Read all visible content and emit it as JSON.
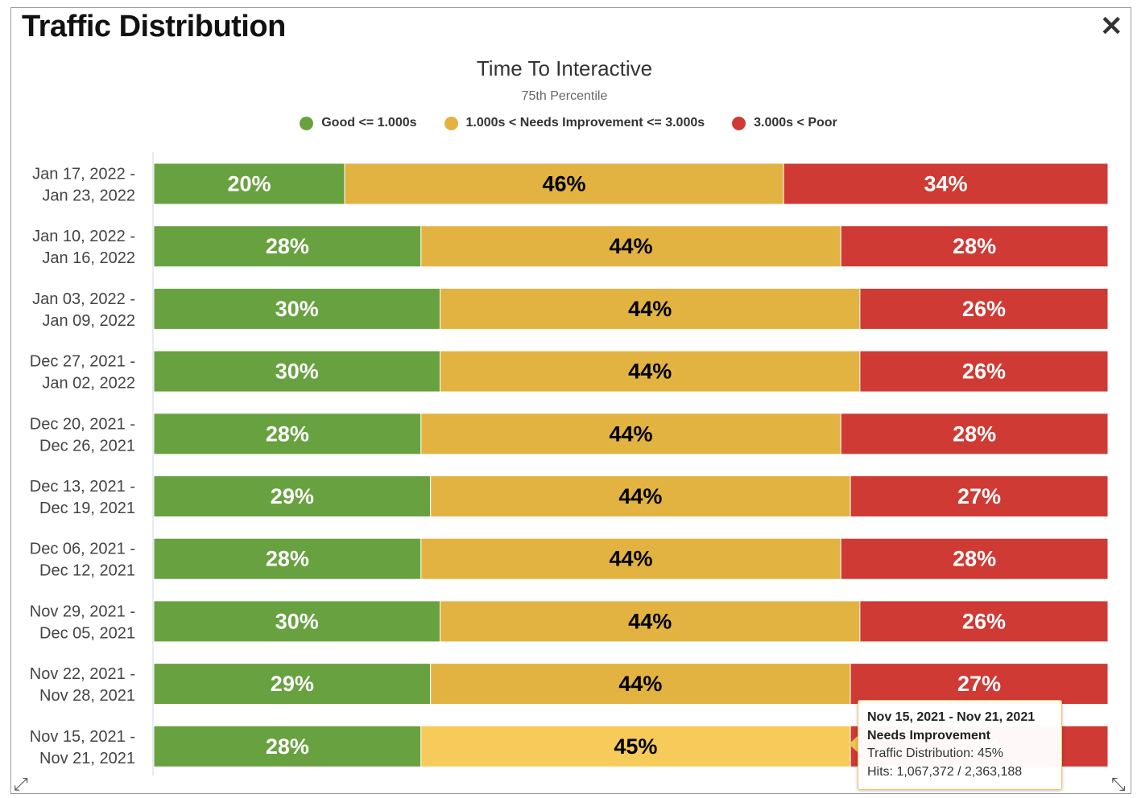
{
  "window": {
    "title": "Traffic Distribution",
    "close_icon": "close-icon",
    "resize_icons": [
      "resize-icon-left",
      "resize-icon-right"
    ]
  },
  "chart_data": {
    "type": "bar",
    "orientation": "horizontal",
    "stacking": "percent",
    "title": "Time To Interactive",
    "subtitle": "75th Percentile",
    "legend": [
      {
        "name": "Good <= 1.000s",
        "color": "#68a140"
      },
      {
        "name": "1.000s < Needs Improvement <= 3.000s",
        "color": "#e2b341"
      },
      {
        "name": "3.000s < Poor",
        "color": "#cf3a34"
      }
    ],
    "categories": [
      [
        "Jan 17, 2022 -",
        "Jan 23, 2022"
      ],
      [
        "Jan 10, 2022 -",
        "Jan 16, 2022"
      ],
      [
        "Jan 03, 2022 -",
        "Jan 09, 2022"
      ],
      [
        "Dec 27, 2021 -",
        "Jan 02, 2022"
      ],
      [
        "Dec 20, 2021 -",
        "Dec 26, 2021"
      ],
      [
        "Dec 13, 2021 -",
        "Dec 19, 2021"
      ],
      [
        "Dec 06, 2021 -",
        "Dec 12, 2021"
      ],
      [
        "Nov 29, 2021 -",
        "Dec 05, 2021"
      ],
      [
        "Nov 22, 2021 -",
        "Nov 28, 2021"
      ],
      [
        "Nov 15, 2021 -",
        "Nov 21, 2021"
      ]
    ],
    "series": [
      {
        "name": "Good",
        "color": "#68a140",
        "label_color": "#ffffff",
        "values": [
          20,
          28,
          30,
          30,
          28,
          29,
          28,
          30,
          29,
          28
        ]
      },
      {
        "name": "Needs Improvement",
        "color": "#e2b341",
        "label_color": "#000000",
        "values": [
          46,
          44,
          44,
          44,
          44,
          44,
          44,
          44,
          44,
          45
        ]
      },
      {
        "name": "Poor",
        "color": "#cf3a34",
        "label_color": "#ffffff",
        "values": [
          34,
          28,
          26,
          26,
          28,
          27,
          28,
          26,
          27,
          27
        ]
      }
    ],
    "value_suffix": "%",
    "xlim": [
      0,
      100
    ],
    "hover": {
      "category_index": 9,
      "series_index": 1,
      "highlight_color": "#f6cb5a"
    }
  },
  "tooltip": {
    "range": "Nov 15, 2021 - Nov 21, 2021",
    "series": "Needs Improvement",
    "distribution": "Traffic Distribution: 45%",
    "hits": "Hits: 1,067,372 / 2,363,188"
  }
}
